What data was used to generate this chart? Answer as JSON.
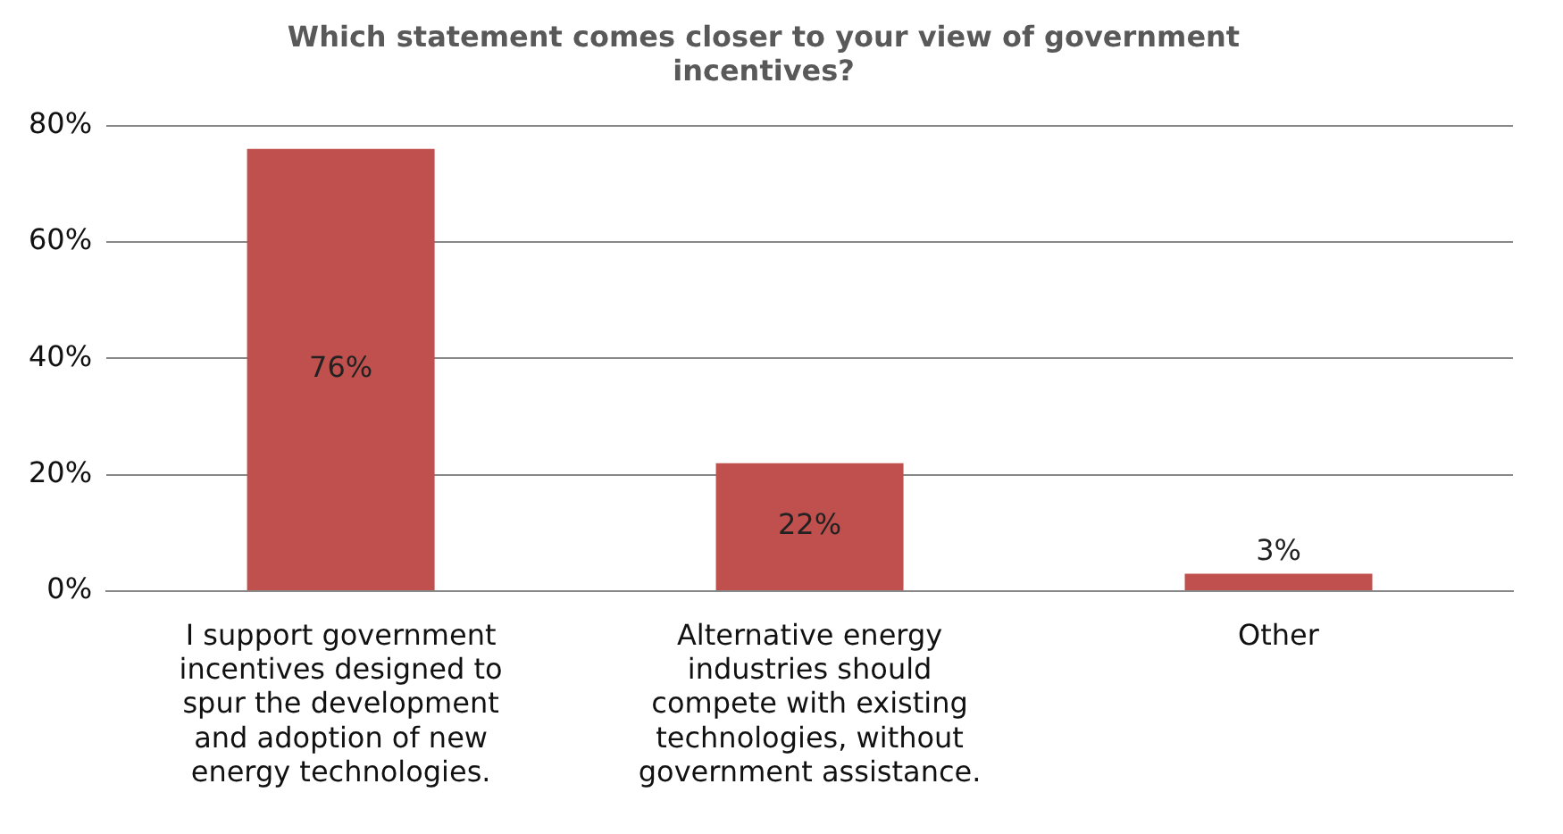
{
  "chart_data": {
    "type": "bar",
    "title": "Which statement comes closer to your view of government incentives?",
    "categories": [
      "I support government incentives designed to spur the development and adoption of new energy technologies.",
      "Alternative energy industries should compete with existing technologies, without government assistance.",
      "Other"
    ],
    "values": [
      76,
      22,
      3
    ],
    "color": "#c0504d",
    "value_labels": [
      "76%",
      "22%",
      "3%"
    ],
    "ylim": [
      0,
      80
    ],
    "yticks": [
      {
        "value": 0,
        "label": "0%"
      },
      {
        "value": 20,
        "label": "20%"
      },
      {
        "value": 40,
        "label": "40%"
      },
      {
        "value": 60,
        "label": "60%"
      },
      {
        "value": 80,
        "label": "80%"
      }
    ],
    "grid": "y",
    "legend": false
  }
}
